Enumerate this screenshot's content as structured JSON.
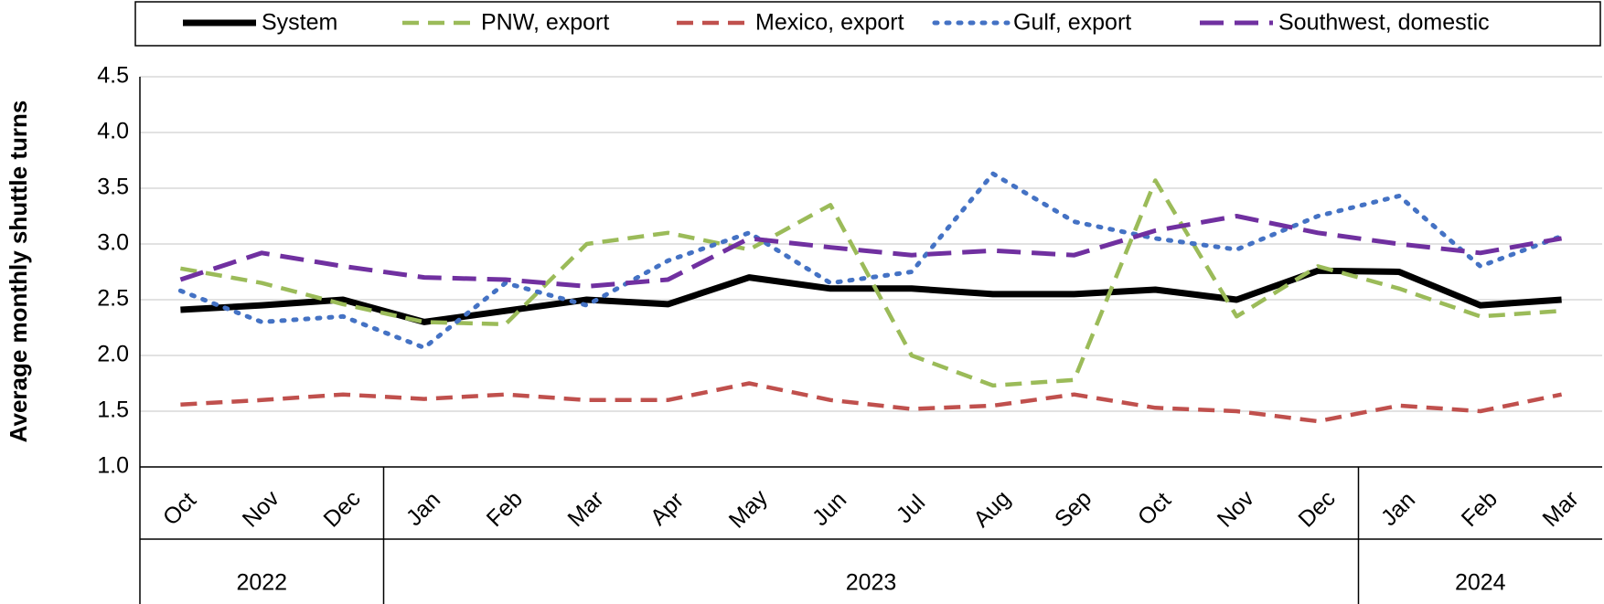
{
  "chart_data": {
    "type": "line",
    "y_label": "Average monthly shuttle turns",
    "groups": [
      {
        "label": "2022",
        "categories": [
          "Oct",
          "Nov",
          "Dec"
        ]
      },
      {
        "label": "2023",
        "categories": [
          "Jan",
          "Feb",
          "Mar",
          "Apr",
          "May",
          "Jun",
          "Jul",
          "Aug",
          "Sep",
          "Oct",
          "Nov",
          "Dec"
        ]
      },
      {
        "label": "2024",
        "categories": [
          "Jan",
          "Feb",
          "Mar"
        ]
      }
    ],
    "series": [
      {
        "name": "System",
        "color": "#000000",
        "dash": "solid",
        "values": [
          2.41,
          2.45,
          2.5,
          2.3,
          2.4,
          2.5,
          2.46,
          2.7,
          2.6,
          2.6,
          2.55,
          2.55,
          2.59,
          2.5,
          2.76,
          2.75,
          2.45,
          2.5
        ]
      },
      {
        "name": "PNW, export",
        "color": "#9bbb59",
        "dash": "dashed",
        "values": [
          2.78,
          2.65,
          2.46,
          2.3,
          2.28,
          3.0,
          3.1,
          2.95,
          3.35,
          2.0,
          1.73,
          1.78,
          3.57,
          2.35,
          2.8,
          2.6,
          2.35,
          2.4
        ]
      },
      {
        "name": "Mexico, export",
        "color": "#c0504d",
        "dash": "dashed",
        "values": [
          1.56,
          1.6,
          1.65,
          1.61,
          1.65,
          1.6,
          1.6,
          1.75,
          1.6,
          1.52,
          1.55,
          1.65,
          1.53,
          1.5,
          1.41,
          1.55,
          1.5,
          1.65
        ]
      },
      {
        "name": "Gulf, export",
        "color": "#4472c4",
        "dash": "dotted",
        "values": [
          2.58,
          2.3,
          2.35,
          2.07,
          2.65,
          2.45,
          2.85,
          3.1,
          2.65,
          2.75,
          3.63,
          3.2,
          3.05,
          2.95,
          3.25,
          3.43,
          2.8,
          3.07
        ]
      },
      {
        "name": "Southwest, domestic",
        "color": "#7030a0",
        "dash": "longdash",
        "values": [
          2.68,
          2.92,
          2.8,
          2.7,
          2.68,
          2.62,
          2.68,
          3.05,
          2.97,
          2.9,
          2.94,
          2.9,
          3.12,
          3.25,
          3.1,
          3.0,
          2.92,
          3.05
        ]
      }
    ],
    "ylim": [
      1.0,
      4.5
    ],
    "yticks": [
      {
        "value": 1,
        "label": "1.0"
      },
      1.5,
      {
        "value": 2,
        "label": "2.0"
      },
      2.5,
      {
        "value": 3,
        "label": "3.0"
      },
      3.5,
      {
        "value": 4,
        "label": "4.0"
      },
      4.5
    ],
    "grid": true,
    "legend": "top"
  }
}
